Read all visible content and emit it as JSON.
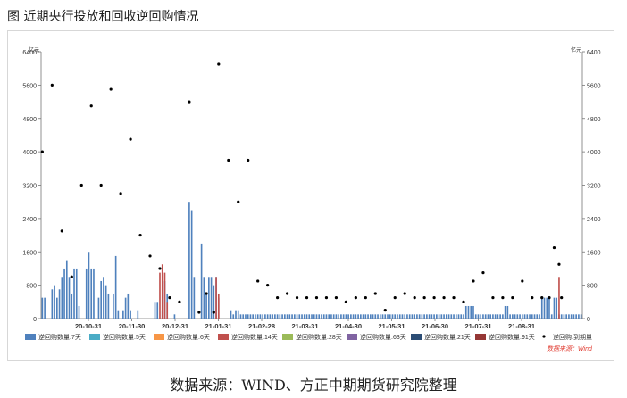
{
  "page": {
    "title": "图   近期央行投放和回收逆回购情况",
    "source_note": "数据来源：WIND、方正中期期货研究院整理"
  },
  "chart_data": {
    "type": "bar",
    "left_unit": "亿元",
    "right_unit": "亿元",
    "ylim": [
      0,
      6400
    ],
    "yticks": [
      0,
      800,
      1600,
      2400,
      3200,
      4000,
      4800,
      5600,
      6400
    ],
    "grid": false,
    "legend_position": "bottom",
    "watermark": "数据来源：Wind",
    "x_tick_labels": [
      "20-10-31",
      "20-11-30",
      "20-12-31",
      "21-01-31",
      "21-02-28",
      "21-03-31",
      "21-04-30",
      "21-05-31",
      "21-06-30",
      "21-07-31",
      "21-08-31"
    ],
    "series": [
      {
        "name": "逆回购数量:7天",
        "color": "#4f81bd",
        "kind": "bar",
        "values": [
          500,
          500,
          0,
          0,
          700,
          800,
          500,
          700,
          1000,
          1200,
          1400,
          1000,
          600,
          1200,
          1200,
          300,
          0,
          0,
          1200,
          1600,
          1200,
          1200,
          0,
          500,
          900,
          1000,
          800,
          600,
          0,
          600,
          1500,
          200,
          0,
          200,
          500,
          600,
          200,
          0,
          0,
          200,
          0,
          0,
          0,
          0,
          0,
          0,
          400,
          400,
          0,
          200,
          900,
          600,
          0,
          0,
          100,
          0,
          0,
          0,
          0,
          0,
          2800,
          2600,
          1000,
          0,
          0,
          1800,
          1000,
          600,
          1000,
          1000,
          800,
          1000,
          500,
          0,
          0,
          0,
          0,
          200,
          100,
          200,
          200,
          100,
          100,
          100,
          100,
          100,
          100,
          100,
          100,
          100,
          100,
          100,
          100,
          100,
          100,
          100,
          100,
          100,
          100,
          100,
          100,
          100,
          100,
          100,
          100,
          100,
          100,
          100,
          100,
          100,
          100,
          100,
          100,
          100,
          100,
          100,
          100,
          100,
          100,
          100,
          100,
          100,
          100,
          100,
          100,
          100,
          100,
          100,
          100,
          100,
          100,
          100,
          100,
          100,
          100,
          100,
          100,
          100,
          100,
          100,
          100,
          100,
          100,
          100,
          100,
          100,
          100,
          100,
          100,
          100,
          100,
          100,
          100,
          100,
          100,
          100,
          100,
          100,
          100,
          100,
          100,
          100,
          100,
          100,
          100,
          100,
          100,
          100,
          100,
          100,
          100,
          100,
          100,
          300,
          300,
          300,
          300,
          100,
          100,
          100,
          100,
          100,
          100,
          100,
          100,
          100,
          100,
          100,
          100,
          300,
          300,
          100,
          100,
          100,
          100,
          100,
          100,
          100,
          100,
          100,
          100,
          100,
          100,
          100,
          500,
          500,
          500,
          500,
          100,
          500,
          500,
          100,
          100,
          100,
          100,
          100,
          100,
          100,
          100,
          100,
          100
        ]
      },
      {
        "name": "逆回购数量:5天",
        "color": "#4bacc6",
        "kind": "bar",
        "values": []
      },
      {
        "name": "逆回购数量:6天",
        "color": "#f79646",
        "kind": "bar",
        "values": []
      },
      {
        "name": "逆回购数量:14天",
        "color": "#c0504d",
        "kind": "bar",
        "bars": [
          {
            "index": 48,
            "value": 1100
          },
          {
            "index": 49,
            "value": 1300
          },
          {
            "index": 50,
            "value": 1100
          },
          {
            "index": 51,
            "value": 400
          },
          {
            "index": 71,
            "value": 1000
          },
          {
            "index": 72,
            "value": 600
          },
          {
            "index": 211,
            "value": 1000
          }
        ]
      },
      {
        "name": "逆回购数量:28天",
        "color": "#9bbb59",
        "kind": "bar",
        "values": []
      },
      {
        "name": "逆回购数量:63天",
        "color": "#8064a2",
        "kind": "bar",
        "values": []
      },
      {
        "name": "逆回购数量:21天",
        "color": "#2c4d75",
        "kind": "bar",
        "values": []
      },
      {
        "name": "逆回购数量:91天",
        "color": "#953735",
        "kind": "bar",
        "values": []
      },
      {
        "name": "逆回购:到期量",
        "color": "#000000",
        "kind": "scatter",
        "points": [
          {
            "index": 0,
            "value": 4000
          },
          {
            "index": 4,
            "value": 5600
          },
          {
            "index": 8,
            "value": 2100
          },
          {
            "index": 12,
            "value": 1000
          },
          {
            "index": 16,
            "value": 3200
          },
          {
            "index": 20,
            "value": 5100
          },
          {
            "index": 24,
            "value": 3200
          },
          {
            "index": 28,
            "value": 5500
          },
          {
            "index": 32,
            "value": 3000
          },
          {
            "index": 36,
            "value": 4300
          },
          {
            "index": 40,
            "value": 2000
          },
          {
            "index": 44,
            "value": 1500
          },
          {
            "index": 48,
            "value": 1200
          },
          {
            "index": 52,
            "value": 500
          },
          {
            "index": 56,
            "value": 400
          },
          {
            "index": 60,
            "value": 5200
          },
          {
            "index": 64,
            "value": 150
          },
          {
            "index": 67,
            "value": 600
          },
          {
            "index": 70,
            "value": 150
          },
          {
            "index": 72,
            "value": 6100
          },
          {
            "index": 76,
            "value": 3800
          },
          {
            "index": 80,
            "value": 2800
          },
          {
            "index": 84,
            "value": 3800
          },
          {
            "index": 88,
            "value": 900
          },
          {
            "index": 92,
            "value": 800
          },
          {
            "index": 96,
            "value": 500
          },
          {
            "index": 100,
            "value": 600
          },
          {
            "index": 104,
            "value": 500
          },
          {
            "index": 108,
            "value": 500
          },
          {
            "index": 112,
            "value": 500
          },
          {
            "index": 116,
            "value": 500
          },
          {
            "index": 120,
            "value": 500
          },
          {
            "index": 124,
            "value": 400
          },
          {
            "index": 128,
            "value": 500
          },
          {
            "index": 132,
            "value": 500
          },
          {
            "index": 136,
            "value": 600
          },
          {
            "index": 140,
            "value": 200
          },
          {
            "index": 144,
            "value": 500
          },
          {
            "index": 148,
            "value": 600
          },
          {
            "index": 152,
            "value": 500
          },
          {
            "index": 156,
            "value": 500
          },
          {
            "index": 160,
            "value": 500
          },
          {
            "index": 164,
            "value": 500
          },
          {
            "index": 168,
            "value": 500
          },
          {
            "index": 172,
            "value": 400
          },
          {
            "index": 176,
            "value": 900
          },
          {
            "index": 180,
            "value": 1100
          },
          {
            "index": 184,
            "value": 500
          },
          {
            "index": 188,
            "value": 500
          },
          {
            "index": 192,
            "value": 500
          },
          {
            "index": 196,
            "value": 900
          },
          {
            "index": 200,
            "value": 500
          },
          {
            "index": 204,
            "value": 500
          },
          {
            "index": 207,
            "value": 500
          },
          {
            "index": 209,
            "value": 1700
          },
          {
            "index": 211,
            "value": 1300
          },
          {
            "index": 212,
            "value": 500
          }
        ]
      }
    ]
  }
}
